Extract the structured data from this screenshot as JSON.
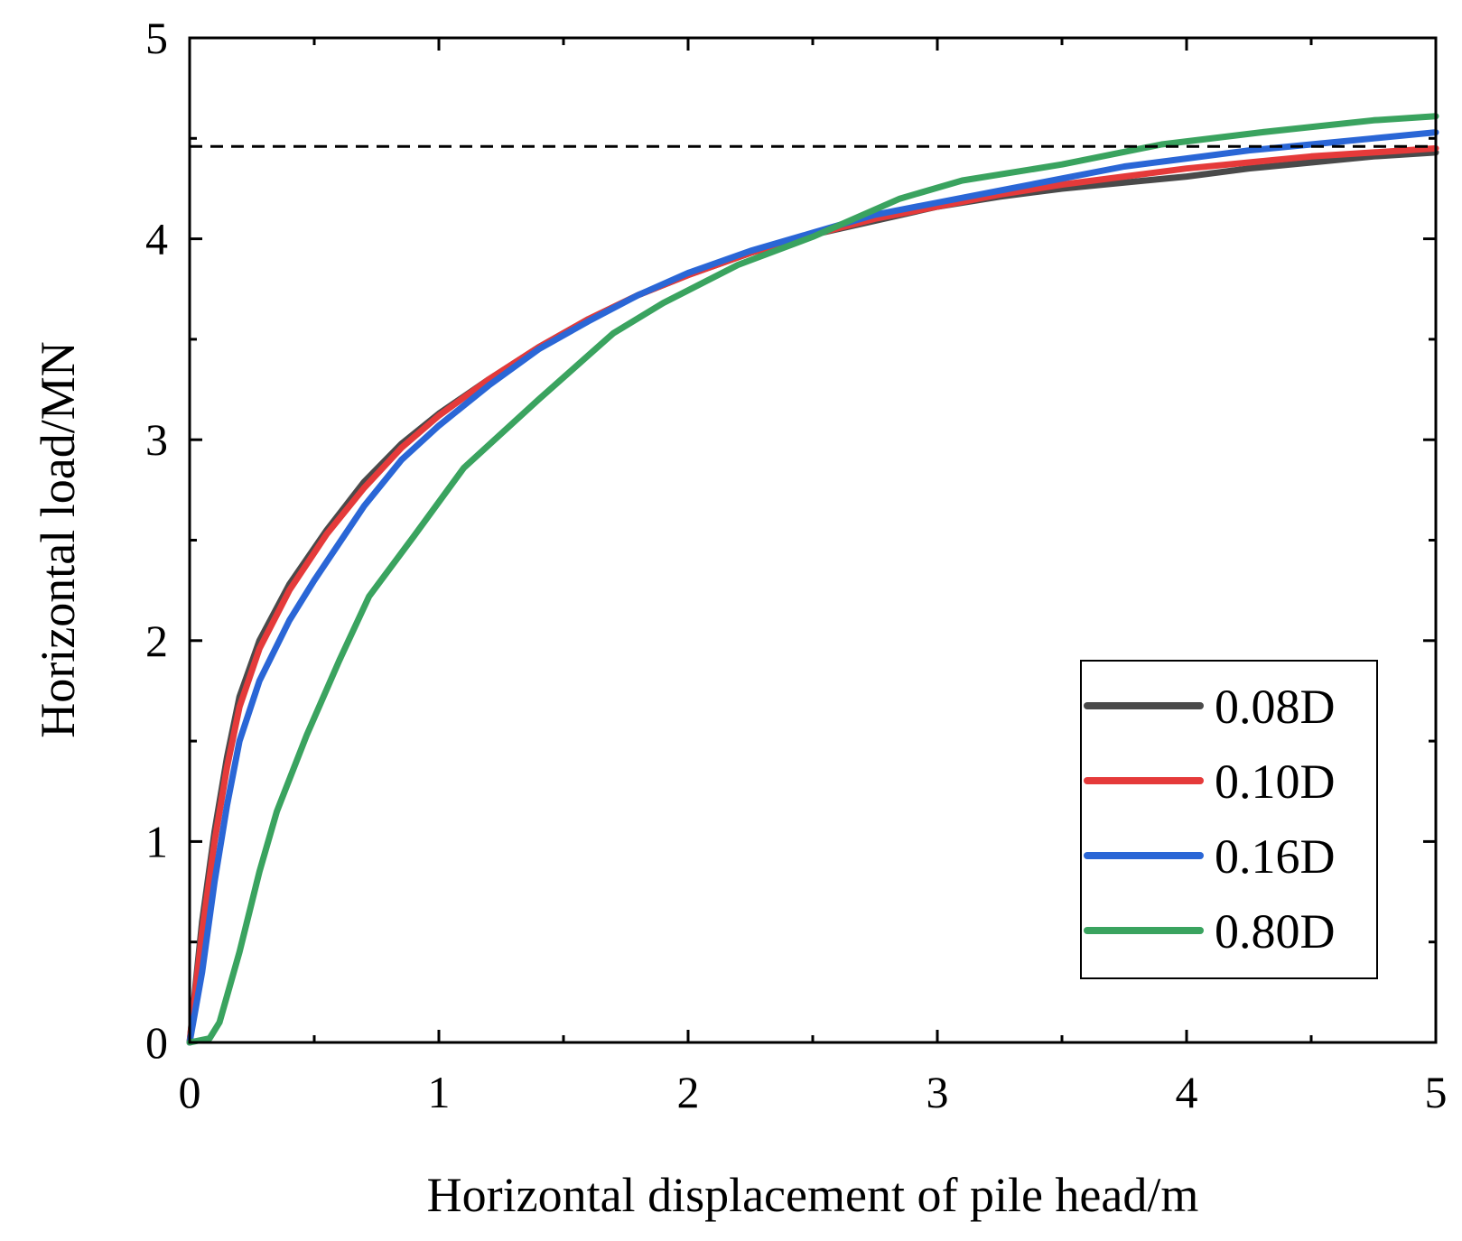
{
  "chart_data": {
    "type": "line",
    "title": "",
    "xlabel": "Horizontal displacement of pile head/m",
    "ylabel": "Horizontal load/MN",
    "xlim": [
      0,
      5
    ],
    "ylim": [
      0,
      5
    ],
    "xticks": [
      "0",
      "1",
      "2",
      "3",
      "4",
      "5"
    ],
    "yticks": [
      "0",
      "1",
      "2",
      "3",
      "4",
      "5"
    ],
    "grid": false,
    "legend_position": "bottom-right",
    "reference_line": {
      "y": 4.46,
      "style": "dashed",
      "color": "#000000"
    },
    "series": [
      {
        "name": "0.08D",
        "color": "#4a4a4a",
        "x": [
          0,
          0.05,
          0.1,
          0.15,
          0.2,
          0.28,
          0.4,
          0.55,
          0.7,
          0.85,
          1.0,
          1.2,
          1.4,
          1.6,
          1.8,
          2.0,
          2.25,
          2.5,
          2.75,
          3.0,
          3.25,
          3.5,
          3.75,
          4.0,
          4.25,
          4.5,
          4.75,
          5.0
        ],
        "y": [
          0,
          0.6,
          1.05,
          1.42,
          1.72,
          2.0,
          2.28,
          2.55,
          2.79,
          2.98,
          3.13,
          3.3,
          3.46,
          3.6,
          3.72,
          3.82,
          3.93,
          4.02,
          4.09,
          4.16,
          4.21,
          4.25,
          4.28,
          4.31,
          4.35,
          4.38,
          4.41,
          4.43
        ]
      },
      {
        "name": "0.10D",
        "color": "#e53a3a",
        "x": [
          0,
          0.05,
          0.1,
          0.15,
          0.2,
          0.28,
          0.4,
          0.55,
          0.7,
          0.85,
          1.0,
          1.2,
          1.4,
          1.6,
          1.8,
          2.0,
          2.25,
          2.5,
          2.75,
          3.0,
          3.25,
          3.5,
          3.75,
          4.0,
          4.25,
          4.5,
          4.75,
          5.0
        ],
        "y": [
          0,
          0.55,
          1.0,
          1.37,
          1.67,
          1.96,
          2.25,
          2.53,
          2.76,
          2.96,
          3.12,
          3.3,
          3.46,
          3.6,
          3.72,
          3.82,
          3.93,
          4.02,
          4.1,
          4.16,
          4.22,
          4.27,
          4.31,
          4.35,
          4.38,
          4.41,
          4.43,
          4.45
        ]
      },
      {
        "name": "0.16D",
        "color": "#2a66d6",
        "x": [
          0,
          0.05,
          0.1,
          0.15,
          0.2,
          0.28,
          0.4,
          0.5,
          0.7,
          0.85,
          1.0,
          1.2,
          1.4,
          1.6,
          1.8,
          2.0,
          2.25,
          2.5,
          2.75,
          3.0,
          3.25,
          3.5,
          3.75,
          4.0,
          4.25,
          4.5,
          4.75,
          5.0
        ],
        "y": [
          0,
          0.35,
          0.8,
          1.18,
          1.5,
          1.8,
          2.1,
          2.3,
          2.67,
          2.9,
          3.07,
          3.27,
          3.45,
          3.59,
          3.72,
          3.83,
          3.94,
          4.03,
          4.12,
          4.18,
          4.24,
          4.3,
          4.36,
          4.4,
          4.44,
          4.47,
          4.5,
          4.53
        ]
      },
      {
        "name": "0.80D",
        "color": "#3aa35f",
        "x": [
          0,
          0.08,
          0.12,
          0.2,
          0.28,
          0.35,
          0.47,
          0.6,
          0.72,
          0.9,
          1.1,
          1.4,
          1.7,
          1.9,
          2.2,
          2.5,
          2.85,
          3.1,
          3.5,
          3.9,
          4.3,
          4.75,
          5.0
        ],
        "y": [
          0,
          0.02,
          0.1,
          0.45,
          0.85,
          1.15,
          1.53,
          1.9,
          2.22,
          2.52,
          2.86,
          3.2,
          3.53,
          3.68,
          3.87,
          4.01,
          4.2,
          4.29,
          4.37,
          4.47,
          4.53,
          4.59,
          4.61
        ]
      }
    ]
  }
}
